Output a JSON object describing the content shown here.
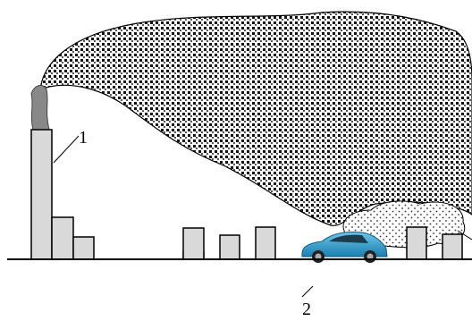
{
  "labels": {
    "chimney": "1",
    "car": "2"
  }
}
